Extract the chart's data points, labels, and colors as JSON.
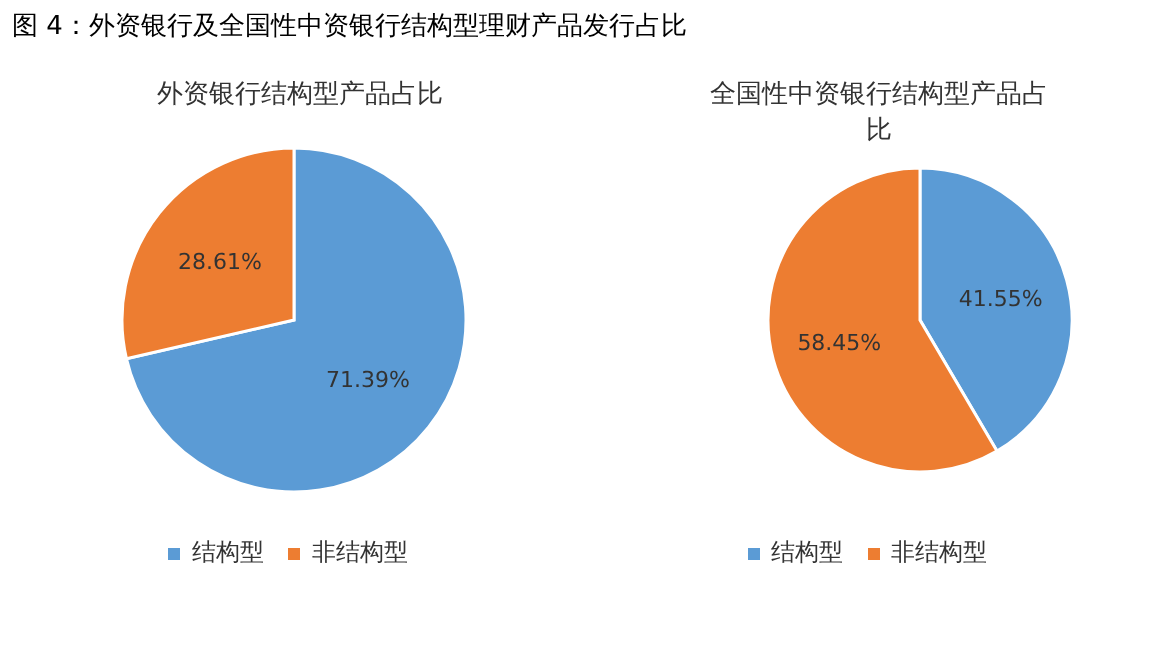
{
  "chart_data": [
    {
      "type": "pie",
      "title": "外资银行结构型产品占比",
      "annotations": [
        "图 4：外资银行及全国性中资银行结构型理财产品发行占比"
      ],
      "categories": [
        "结构型",
        "非结构型"
      ],
      "values": [
        71.39,
        28.61
      ],
      "value_labels": [
        "71.39%",
        "28.61%"
      ],
      "colors": [
        "#5b9bd5",
        "#ed7d31"
      ],
      "legend": "bottom"
    },
    {
      "type": "pie",
      "title": "全国性中资银行结构型产品占比",
      "categories": [
        "结构型",
        "非结构型"
      ],
      "values": [
        41.55,
        58.45
      ],
      "value_labels": [
        "41.55%",
        "58.45%"
      ],
      "colors": [
        "#5b9bd5",
        "#ed7d31"
      ],
      "legend": "bottom"
    }
  ]
}
